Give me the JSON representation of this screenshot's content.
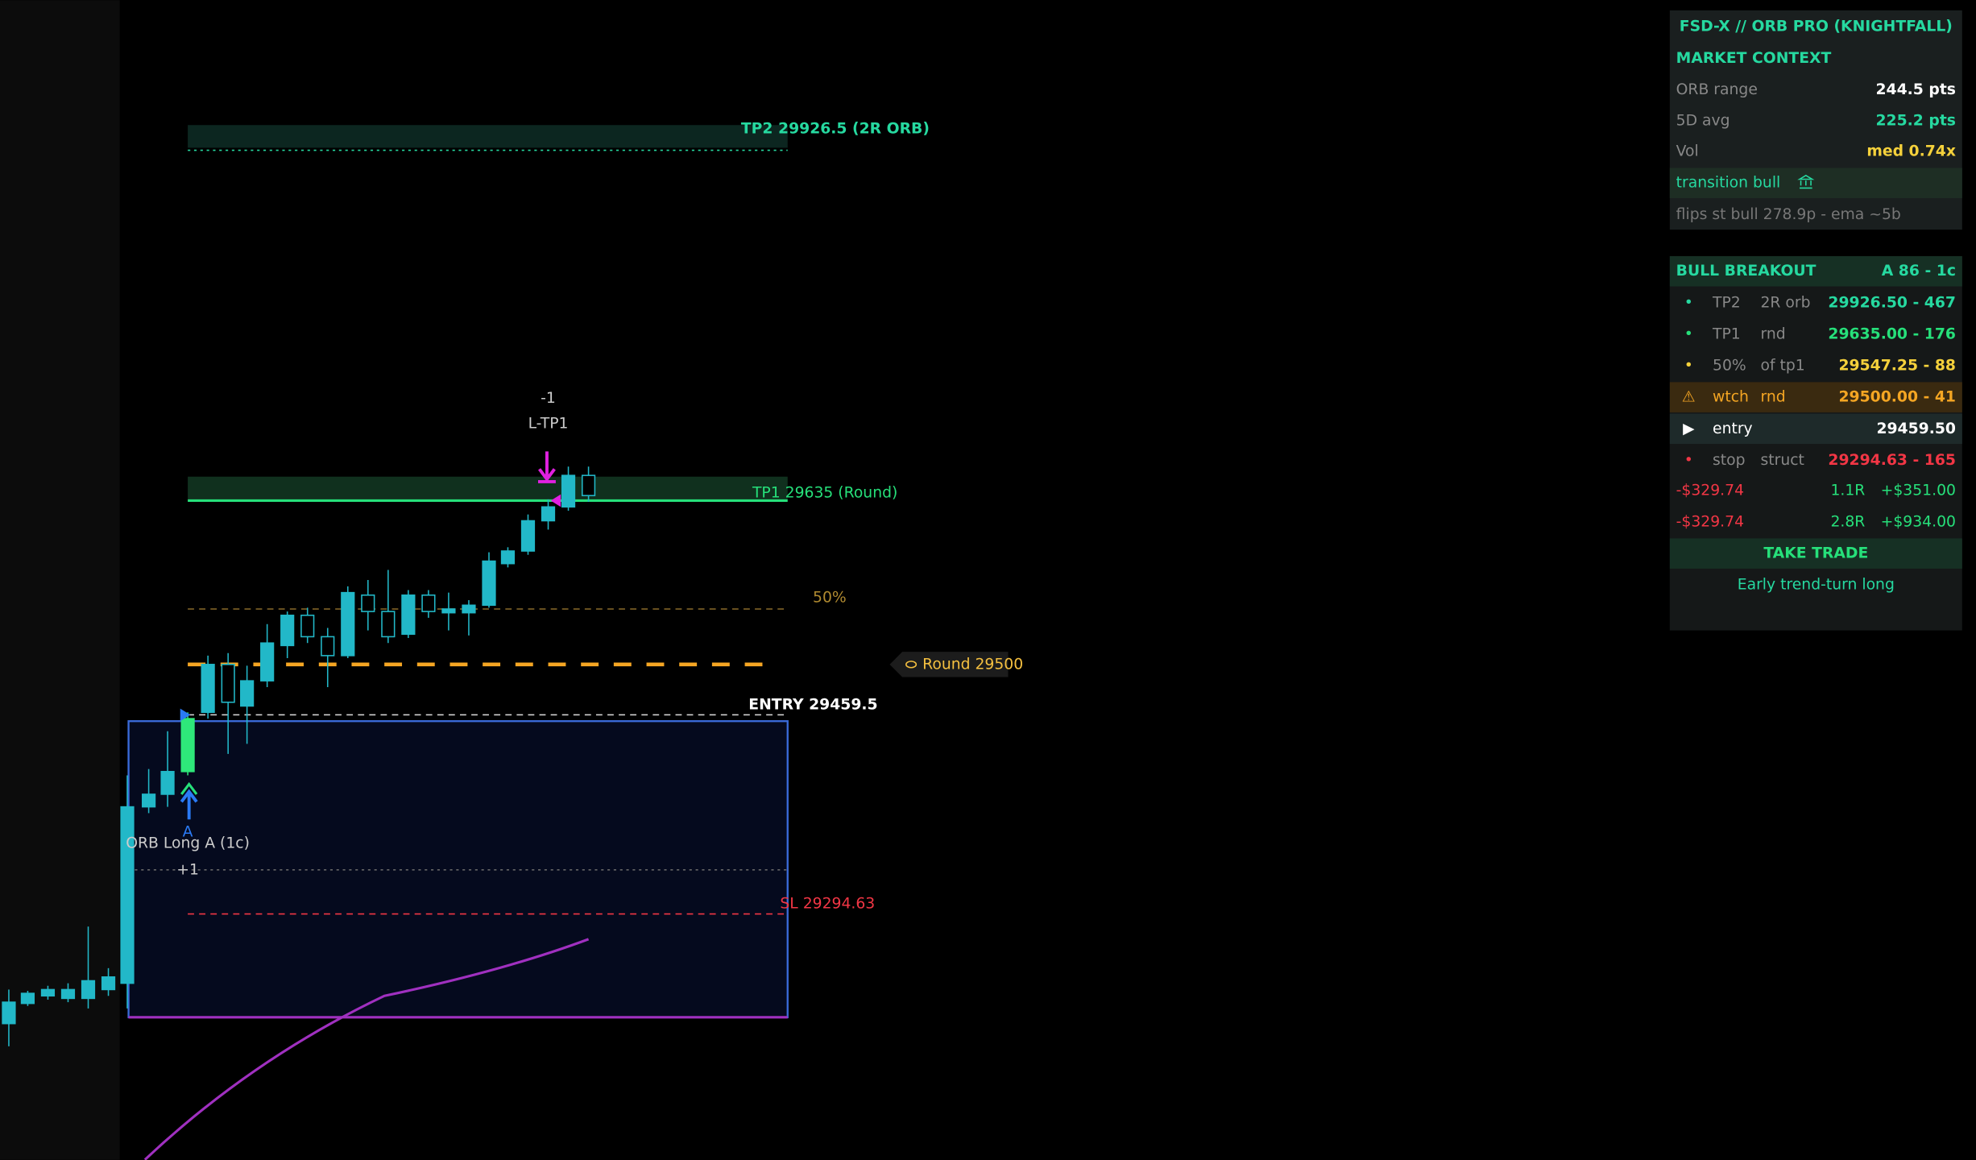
{
  "chart_labels": {
    "tp2": "TP2 29926.5 (2R ORB)",
    "tp1_count": "-1",
    "tp1_signal": "L-TP1",
    "tp1": "TP1 29635 (Round)",
    "fifty": "50%",
    "round": "Round 29500",
    "entry": "ENTRY 29459.5",
    "orb_marker": "A",
    "orb_long": "ORB Long A (1c)",
    "orb_count": "+1",
    "sl": "SL 29294.63"
  },
  "panel": {
    "title": "FSD-X // ORB PRO (KNIGHTFALL)",
    "market_context": {
      "heading": "MARKET CONTEXT",
      "rows": [
        [
          "ORB range",
          "244.5 pts"
        ],
        [
          "5D avg",
          "225.2 pts"
        ],
        [
          "Vol",
          "med 0.74x"
        ]
      ],
      "regime": "transition bull",
      "note": "flips st bull 278.9p - ema ~5b"
    },
    "breakout": {
      "heading": "BULL BREAKOUT",
      "grade": "A 86 - 1c",
      "levels": [
        {
          "icon": "•",
          "name": "TP2",
          "tag": "2R orb",
          "value": "29926.50 - 467"
        },
        {
          "icon": "•",
          "name": "TP1",
          "tag": "rnd",
          "value": "29635.00 - 176"
        },
        {
          "icon": "•",
          "name": "50%",
          "tag": "of tp1",
          "value": "29547.25 - 88"
        },
        {
          "icon": "⚠",
          "name": "wtch",
          "tag": "rnd",
          "value": "29500.00 - 41"
        },
        {
          "icon": "▶",
          "name": "entry",
          "value": "29459.50"
        },
        {
          "icon": "•",
          "name": "stop",
          "tag": "struct",
          "value": "29294.63 - 165"
        }
      ],
      "risk": [
        [
          "-$329.74",
          "1.1R",
          "+$351.00"
        ],
        [
          "-$329.74",
          "2.8R",
          "+$934.00"
        ]
      ],
      "action": "TAKE TRADE",
      "note": "Early trend-turn long"
    }
  }
}
